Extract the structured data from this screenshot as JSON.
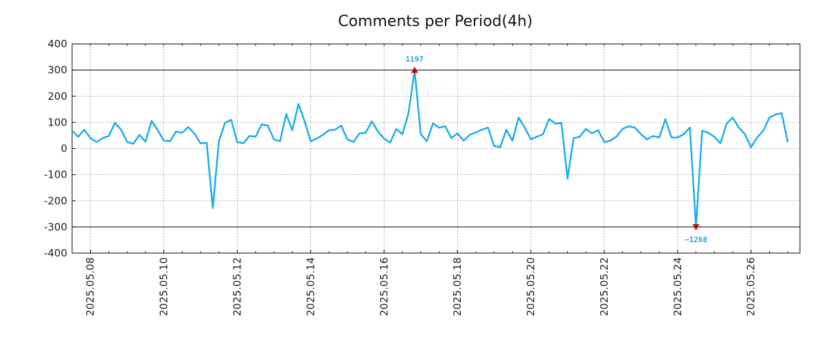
{
  "chart_data": {
    "type": "line",
    "title": "Comments per Period(4h)",
    "xlabel": "",
    "ylabel": "",
    "ylim": [
      -400,
      400
    ],
    "yticks": [
      "400",
      "300",
      "200",
      "100",
      "0",
      "-100",
      "-200",
      "-300",
      "-400"
    ],
    "ytick_values": [
      400,
      300,
      200,
      100,
      0,
      -100,
      -200,
      -300,
      -400
    ],
    "xticks": [
      "2025.05.08",
      "2025.05.10",
      "2025.05.12",
      "2025.05.14",
      "2025.05.16",
      "2025.05.18",
      "2025.05.20",
      "2025.05.22",
      "2025.05.24",
      "2025.05.26"
    ],
    "xlim": [
      "2025-05-07 12:00",
      "2025-05-27 08:00"
    ],
    "interval_hours": 4,
    "clip_lines": [
      300,
      -300
    ],
    "grid": true,
    "line_color": "#1aaee8",
    "marker_color": "#cc0000",
    "series": [
      {
        "x_start": "2025-05-07 12:00",
        "values": [
          68,
          45,
          72,
          40,
          25,
          40,
          48,
          98,
          72,
          25,
          18,
          52,
          26,
          106,
          70,
          30,
          28,
          65,
          60,
          82,
          57,
          20,
          22,
          -228,
          28,
          98,
          110,
          25,
          20,
          48,
          45,
          92,
          88,
          35,
          28,
          132,
          70,
          170,
          105,
          28,
          38,
          52,
          70,
          72,
          88,
          35,
          25,
          58,
          60,
          104,
          65,
          38,
          22,
          75,
          55,
          135,
          300,
          55,
          28,
          96,
          80,
          85,
          40,
          58,
          30,
          52,
          62,
          72,
          80,
          10,
          5,
          72,
          30,
          118,
          80,
          35,
          45,
          55,
          113,
          95,
          98,
          -115,
          40,
          45,
          75,
          58,
          70,
          25,
          30,
          45,
          75,
          85,
          80,
          55,
          35,
          48,
          42,
          112,
          42,
          42,
          55,
          80,
          -300,
          68,
          60,
          45,
          20,
          95,
          118,
          80,
          55,
          5,
          42,
          68,
          118,
          130,
          135,
          25
        ]
      }
    ],
    "annotations": [
      {
        "label": "1197",
        "x_index": 56,
        "y": 300,
        "kind": "max",
        "position": "above"
      },
      {
        "label": "−1268",
        "x_index": 102,
        "y": -300,
        "kind": "min",
        "position": "below"
      }
    ]
  }
}
